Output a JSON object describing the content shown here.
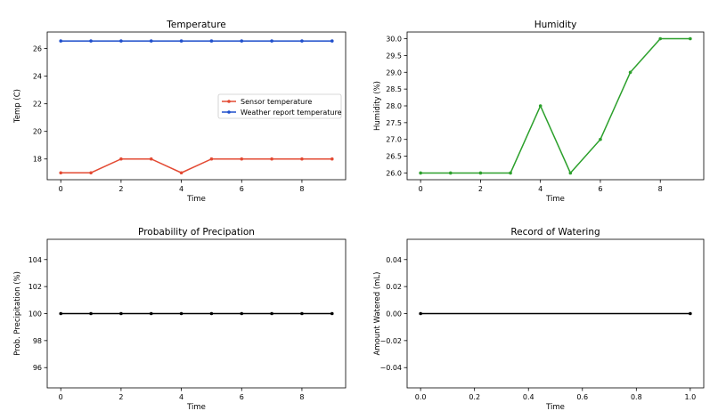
{
  "figure": {
    "background": "#ffffff"
  },
  "chart_data": [
    {
      "id": "temperature",
      "type": "line",
      "title": "Temperature",
      "xlabel": "Time",
      "ylabel": "Temp (C)",
      "xlim": [
        -0.45,
        9.45
      ],
      "ylim": [
        16.5,
        27.2
      ],
      "xticks": [
        0,
        2,
        4,
        6,
        8
      ],
      "yticks": [
        18,
        20,
        22,
        24,
        26
      ],
      "tick_decimals": 0,
      "legend": {
        "placement": "center-right"
      },
      "series": [
        {
          "name": "Sensor temperature",
          "color": "#e34a33",
          "x": [
            0,
            1,
            2,
            3,
            4,
            5,
            6,
            7,
            8,
            9
          ],
          "values": [
            17,
            17,
            18,
            18,
            17,
            18,
            18,
            18,
            18,
            18
          ]
        },
        {
          "name": "Weather report temperature",
          "color": "#1f4fcc",
          "x": [
            0,
            1,
            2,
            3,
            4,
            5,
            6,
            7,
            8,
            9
          ],
          "values": [
            26.55,
            26.55,
            26.55,
            26.55,
            26.55,
            26.55,
            26.55,
            26.55,
            26.55,
            26.55
          ]
        }
      ]
    },
    {
      "id": "humidity",
      "type": "line",
      "title": "Humidity",
      "xlabel": "Time",
      "ylabel": "Humidity (%)",
      "xlim": [
        -0.45,
        9.45
      ],
      "ylim": [
        25.8,
        30.2
      ],
      "xticks": [
        0,
        2,
        4,
        6,
        8
      ],
      "yticks": [
        26.0,
        26.5,
        27.0,
        27.5,
        28.0,
        28.5,
        29.0,
        29.5,
        30.0
      ],
      "tick_decimals": 1,
      "series": [
        {
          "name": "Humidity",
          "color": "#2ca02c",
          "x": [
            0,
            1,
            2,
            3,
            4,
            5,
            6,
            7,
            8,
            9
          ],
          "values": [
            26,
            26,
            26,
            26,
            28,
            26,
            27,
            29,
            30,
            30
          ]
        }
      ]
    },
    {
      "id": "precipitation",
      "type": "line",
      "title": "Probability of Precipation",
      "xlabel": "Time",
      "ylabel": "Prob. Precipitation (%)",
      "xlim": [
        -0.45,
        9.45
      ],
      "ylim": [
        94.5,
        105.5
      ],
      "xticks": [
        0,
        2,
        4,
        6,
        8
      ],
      "yticks": [
        96,
        98,
        100,
        102,
        104
      ],
      "tick_decimals": 0,
      "series": [
        {
          "name": "Probability of precipitation",
          "color": "#000000",
          "x": [
            0,
            1,
            2,
            3,
            4,
            5,
            6,
            7,
            8,
            9
          ],
          "values": [
            100,
            100,
            100,
            100,
            100,
            100,
            100,
            100,
            100,
            100
          ]
        }
      ]
    },
    {
      "id": "watering",
      "type": "line",
      "title": "Record of Watering",
      "xlabel": "Time",
      "ylabel": "Amount Watered (mL)",
      "xlim": [
        -0.05,
        1.05
      ],
      "ylim": [
        -0.055,
        0.055
      ],
      "xticks": [
        0.0,
        0.2,
        0.4,
        0.6,
        0.8,
        1.0
      ],
      "yticks": [
        -0.04,
        -0.02,
        0.0,
        0.02,
        0.04
      ],
      "tick_decimals": 2,
      "x_tick_decimals": 1,
      "series": [
        {
          "name": "Amount watered",
          "color": "#000000",
          "x": [
            0,
            1
          ],
          "values": [
            0,
            0
          ]
        }
      ]
    }
  ]
}
